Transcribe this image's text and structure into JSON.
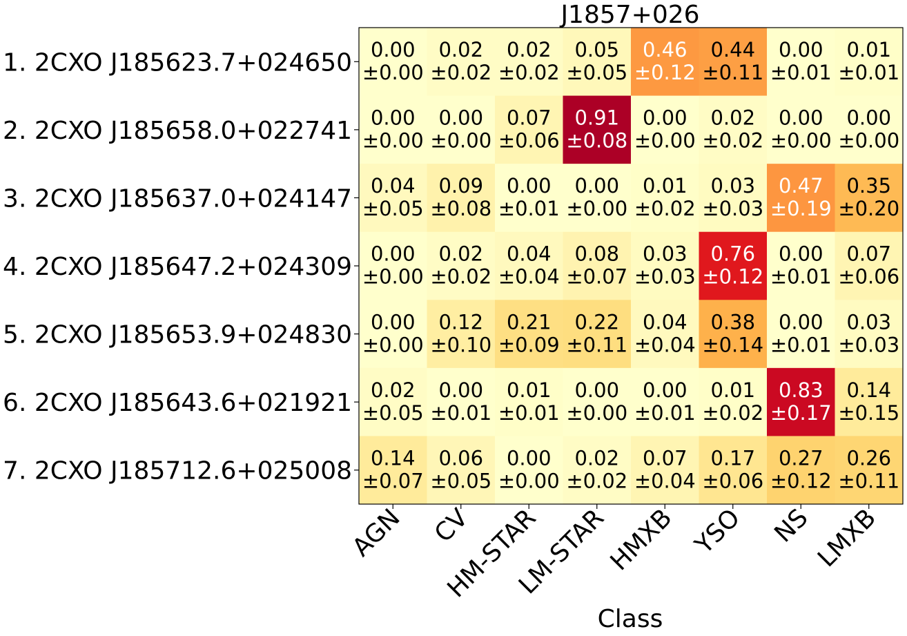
{
  "chart_data": {
    "type": "heatmap",
    "title": "J1857+026",
    "xlabel": "Class",
    "ylabel": "",
    "x_categories": [
      "AGN",
      "CV",
      "HM-STAR",
      "LM-STAR",
      "HMXB",
      "YSO",
      "NS",
      "LMXB"
    ],
    "y_categories": [
      "1. 2CXO J185623.7+024650",
      "2. 2CXO J185658.0+022741",
      "3. 2CXO J185637.0+024147",
      "4. 2CXO J185647.2+024309",
      "5. 2CXO J185653.9+024830",
      "6. 2CXO J185643.6+021921",
      "7. 2CXO J185712.6+025008"
    ],
    "values": [
      [
        0.0,
        0.02,
        0.02,
        0.05,
        0.46,
        0.44,
        0.0,
        0.01
      ],
      [
        0.0,
        0.0,
        0.07,
        0.91,
        0.0,
        0.02,
        0.0,
        0.0
      ],
      [
        0.04,
        0.09,
        0.0,
        0.0,
        0.01,
        0.03,
        0.47,
        0.35
      ],
      [
        0.0,
        0.02,
        0.04,
        0.08,
        0.03,
        0.76,
        0.0,
        0.07
      ],
      [
        0.0,
        0.12,
        0.21,
        0.22,
        0.04,
        0.38,
        0.0,
        0.03
      ],
      [
        0.02,
        0.0,
        0.01,
        0.0,
        0.0,
        0.01,
        0.83,
        0.14
      ],
      [
        0.14,
        0.06,
        0.0,
        0.02,
        0.07,
        0.17,
        0.27,
        0.26
      ]
    ],
    "errors": [
      [
        0.0,
        0.02,
        0.02,
        0.05,
        0.12,
        0.11,
        0.01,
        0.01
      ],
      [
        0.0,
        0.0,
        0.06,
        0.08,
        0.0,
        0.02,
        0.0,
        0.0
      ],
      [
        0.05,
        0.08,
        0.01,
        0.0,
        0.02,
        0.03,
        0.19,
        0.2
      ],
      [
        0.0,
        0.02,
        0.04,
        0.07,
        0.03,
        0.12,
        0.01,
        0.06
      ],
      [
        0.0,
        0.1,
        0.09,
        0.11,
        0.04,
        0.14,
        0.01,
        0.03
      ],
      [
        0.05,
        0.01,
        0.01,
        0.0,
        0.01,
        0.02,
        0.17,
        0.15
      ],
      [
        0.07,
        0.05,
        0.0,
        0.02,
        0.04,
        0.06,
        0.12,
        0.11
      ]
    ],
    "colormap": "YlOrRd",
    "value_range": [
      0,
      1
    ],
    "grid": false
  }
}
